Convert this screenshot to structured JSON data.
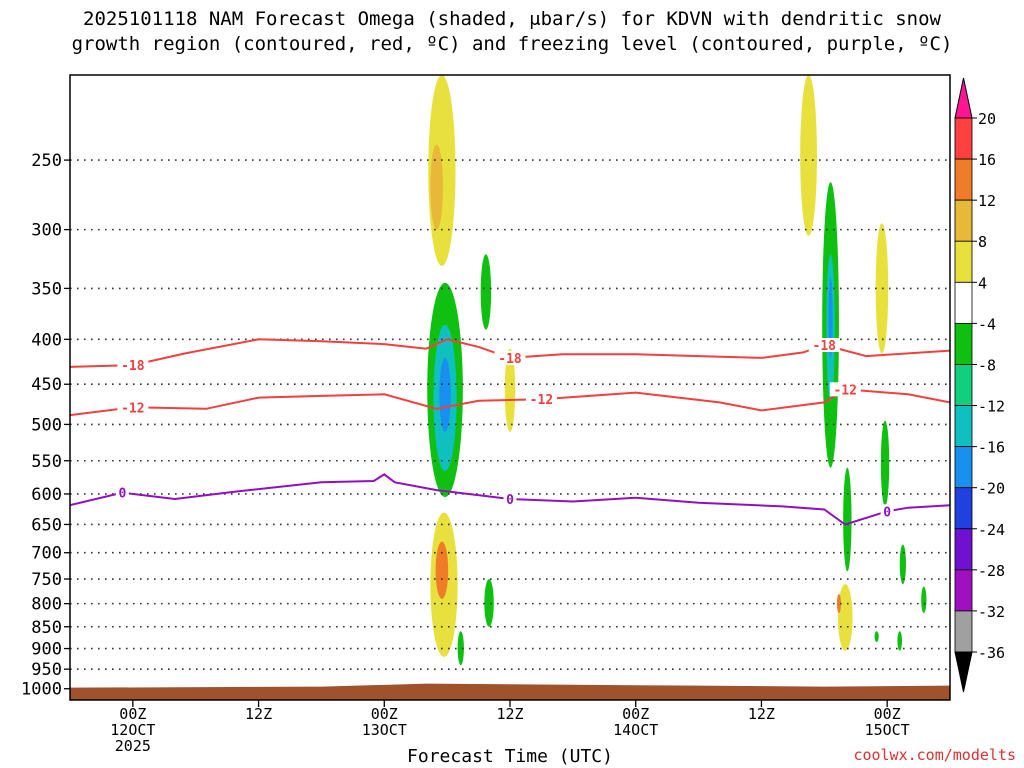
{
  "chart_data": {
    "type": "heatmap",
    "title_line1": "2025101118 NAM Forecast Omega (shaded, μbar/s) for KDVN with dendritic snow",
    "title_line2": "growth region (contoured, red, ºC) and freezing level (contoured, purple, ºC)",
    "xlabel": "Forecast Time (UTC)",
    "credit": "coolwx.com/modelts",
    "y_levels_hpa": [
      250,
      300,
      350,
      400,
      450,
      500,
      550,
      600,
      650,
      700,
      750,
      800,
      850,
      900,
      950,
      1000
    ],
    "y_tick_labels": [
      "250",
      "300",
      "350",
      "400",
      "450",
      "500",
      "550",
      "600",
      "650",
      "700",
      "750",
      "800",
      "850",
      "900",
      "950",
      "1000"
    ],
    "ylim": [
      200,
      1030
    ],
    "xlim_hours": [
      0,
      84
    ],
    "x_ticks": [
      {
        "hour": 6,
        "line1": "00Z",
        "line2": "12OCT",
        "line3": "2025"
      },
      {
        "hour": 18,
        "line1": "12Z",
        "line2": "",
        "line3": ""
      },
      {
        "hour": 30,
        "line1": "00Z",
        "line2": "13OCT",
        "line3": ""
      },
      {
        "hour": 42,
        "line1": "12Z",
        "line2": "",
        "line3": ""
      },
      {
        "hour": 54,
        "line1": "00Z",
        "line2": "14OCT",
        "line3": ""
      },
      {
        "hour": 66,
        "line1": "12Z",
        "line2": "",
        "line3": ""
      },
      {
        "hour": 78,
        "line1": "00Z",
        "line2": "15OCT",
        "line3": ""
      }
    ],
    "colorbar": {
      "labels": [
        "20",
        "16",
        "12",
        "8",
        "4",
        "-4",
        "-8",
        "-12",
        "-16",
        "-20",
        "-24",
        "-28",
        "-32",
        "-36"
      ],
      "colors": [
        "#ff1493",
        "#ff4040",
        "#f07c28",
        "#e8b838",
        "#e8e03c",
        "#ffffff",
        "#10c010",
        "#10d080",
        "#10c0c0",
        "#1890f0",
        "#2040e0",
        "#7010d0",
        "#a010c0",
        "#a0a0a0",
        "#000000"
      ]
    },
    "isotherms": [
      {
        "label": "-18",
        "color": "#f04040",
        "points": [
          [
            0,
            430
          ],
          [
            6,
            428
          ],
          [
            11,
            415
          ],
          [
            18,
            400
          ],
          [
            24,
            402
          ],
          [
            30,
            405
          ],
          [
            34,
            410
          ],
          [
            36,
            400
          ],
          [
            39,
            408
          ],
          [
            42,
            420
          ],
          [
            47,
            416
          ],
          [
            54,
            416
          ],
          [
            60,
            418
          ],
          [
            66,
            420
          ],
          [
            70,
            414
          ],
          [
            72,
            406
          ],
          [
            76,
            418
          ],
          [
            84,
            412
          ]
        ]
      },
      {
        "label": "-12",
        "color": "#f04040",
        "points": [
          [
            0,
            488
          ],
          [
            6,
            478
          ],
          [
            13,
            480
          ],
          [
            18,
            466
          ],
          [
            24,
            464
          ],
          [
            30,
            462
          ],
          [
            35,
            480
          ],
          [
            39,
            470
          ],
          [
            45,
            468
          ],
          [
            54,
            460
          ],
          [
            62,
            472
          ],
          [
            66,
            482
          ],
          [
            72,
            472
          ],
          [
            74,
            456
          ],
          [
            80,
            462
          ],
          [
            84,
            472
          ]
        ]
      },
      {
        "label": "0",
        "color": "#9010c0",
        "points": [
          [
            0,
            618
          ],
          [
            5,
            598
          ],
          [
            10,
            608
          ],
          [
            16,
            596
          ],
          [
            24,
            582
          ],
          [
            29,
            580
          ],
          [
            30,
            570
          ],
          [
            31,
            582
          ],
          [
            35,
            594
          ],
          [
            42,
            608
          ],
          [
            48,
            612
          ],
          [
            54,
            606
          ],
          [
            60,
            614
          ],
          [
            68,
            620
          ],
          [
            72,
            625
          ],
          [
            74,
            650
          ],
          [
            78,
            628
          ],
          [
            80,
            622
          ],
          [
            84,
            618
          ]
        ]
      }
    ],
    "omega_cells": [
      {
        "value": 6,
        "hour": 35.5,
        "p_top": 200,
        "p_bot": 330,
        "w": 1.3
      },
      {
        "value": 10,
        "hour": 35.0,
        "p_top": 240,
        "p_bot": 300,
        "w": 0.6
      },
      {
        "value": -6,
        "hour": 35.8,
        "p_top": 345,
        "p_bot": 605,
        "w": 1.7
      },
      {
        "value": -12,
        "hour": 35.8,
        "p_top": 385,
        "p_bot": 565,
        "w": 1.1
      },
      {
        "value": -16,
        "hour": 35.8,
        "p_top": 420,
        "p_bot": 510,
        "w": 0.55
      },
      {
        "value": -6,
        "hour": 39.7,
        "p_top": 320,
        "p_bot": 390,
        "w": 0.5
      },
      {
        "value": 6,
        "hour": 42.0,
        "p_top": 410,
        "p_bot": 510,
        "w": 0.5
      },
      {
        "value": 6,
        "hour": 35.7,
        "p_top": 630,
        "p_bot": 920,
        "w": 1.3
      },
      {
        "value": 12,
        "hour": 35.5,
        "p_top": 680,
        "p_bot": 790,
        "w": 0.6
      },
      {
        "value": -6,
        "hour": 40.0,
        "p_top": 750,
        "p_bot": 850,
        "w": 0.45
      },
      {
        "value": -6,
        "hour": 37.3,
        "p_top": 860,
        "p_bot": 940,
        "w": 0.3
      },
      {
        "value": 6,
        "hour": 70.5,
        "p_top": 200,
        "p_bot": 305,
        "w": 0.8
      },
      {
        "value": -6,
        "hour": 72.6,
        "p_top": 265,
        "p_bot": 560,
        "w": 0.8
      },
      {
        "value": -12,
        "hour": 72.6,
        "p_top": 320,
        "p_bot": 470,
        "w": 0.4
      },
      {
        "value": -16,
        "hour": 72.6,
        "p_top": 340,
        "p_bot": 420,
        "w": 0.2
      },
      {
        "value": -6,
        "hour": 74.2,
        "p_top": 560,
        "p_bot": 735,
        "w": 0.4
      },
      {
        "value": 6,
        "hour": 77.5,
        "p_top": 295,
        "p_bot": 415,
        "w": 0.6
      },
      {
        "value": -6,
        "hour": 77.8,
        "p_top": 495,
        "p_bot": 620,
        "w": 0.4
      },
      {
        "value": 6,
        "hour": 74.0,
        "p_top": 760,
        "p_bot": 905,
        "w": 0.7
      },
      {
        "value": 12,
        "hour": 73.4,
        "p_top": 780,
        "p_bot": 820,
        "w": 0.15
      },
      {
        "value": -6,
        "hour": 79.5,
        "p_top": 685,
        "p_bot": 760,
        "w": 0.3
      },
      {
        "value": -6,
        "hour": 81.5,
        "p_top": 765,
        "p_bot": 820,
        "w": 0.25
      },
      {
        "value": -6,
        "hour": 79.2,
        "p_top": 860,
        "p_bot": 905,
        "w": 0.22
      },
      {
        "value": -6,
        "hour": 77.0,
        "p_top": 860,
        "p_bot": 885,
        "w": 0.2
      }
    ],
    "ground_pressure_hpa": 992
  }
}
